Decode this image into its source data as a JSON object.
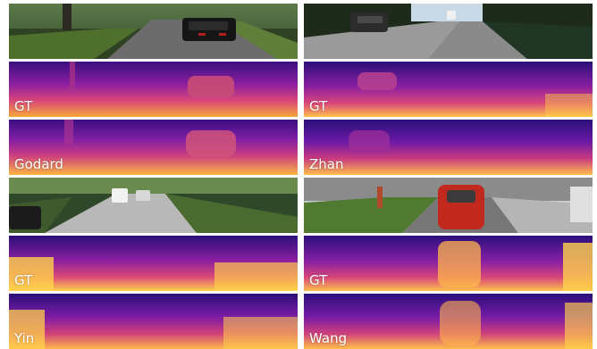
{
  "panels": {
    "top_left": {
      "gt_label": "GT",
      "pred_label": "Godard"
    },
    "top_right": {
      "gt_label": "GT",
      "pred_label": "Zhan"
    },
    "bottom_left": {
      "gt_label": "GT",
      "pred_label": "Yin"
    },
    "bottom_right": {
      "gt_label": "GT",
      "pred_label": "Wang"
    }
  },
  "colors": {
    "depth_far": "#2b0f7a",
    "depth_mid": "#b83289",
    "depth_near": "#fdd045",
    "sky_green": "#4e6d3d",
    "road_gray": "#6f6f6f",
    "car_red": "#c1291f"
  }
}
